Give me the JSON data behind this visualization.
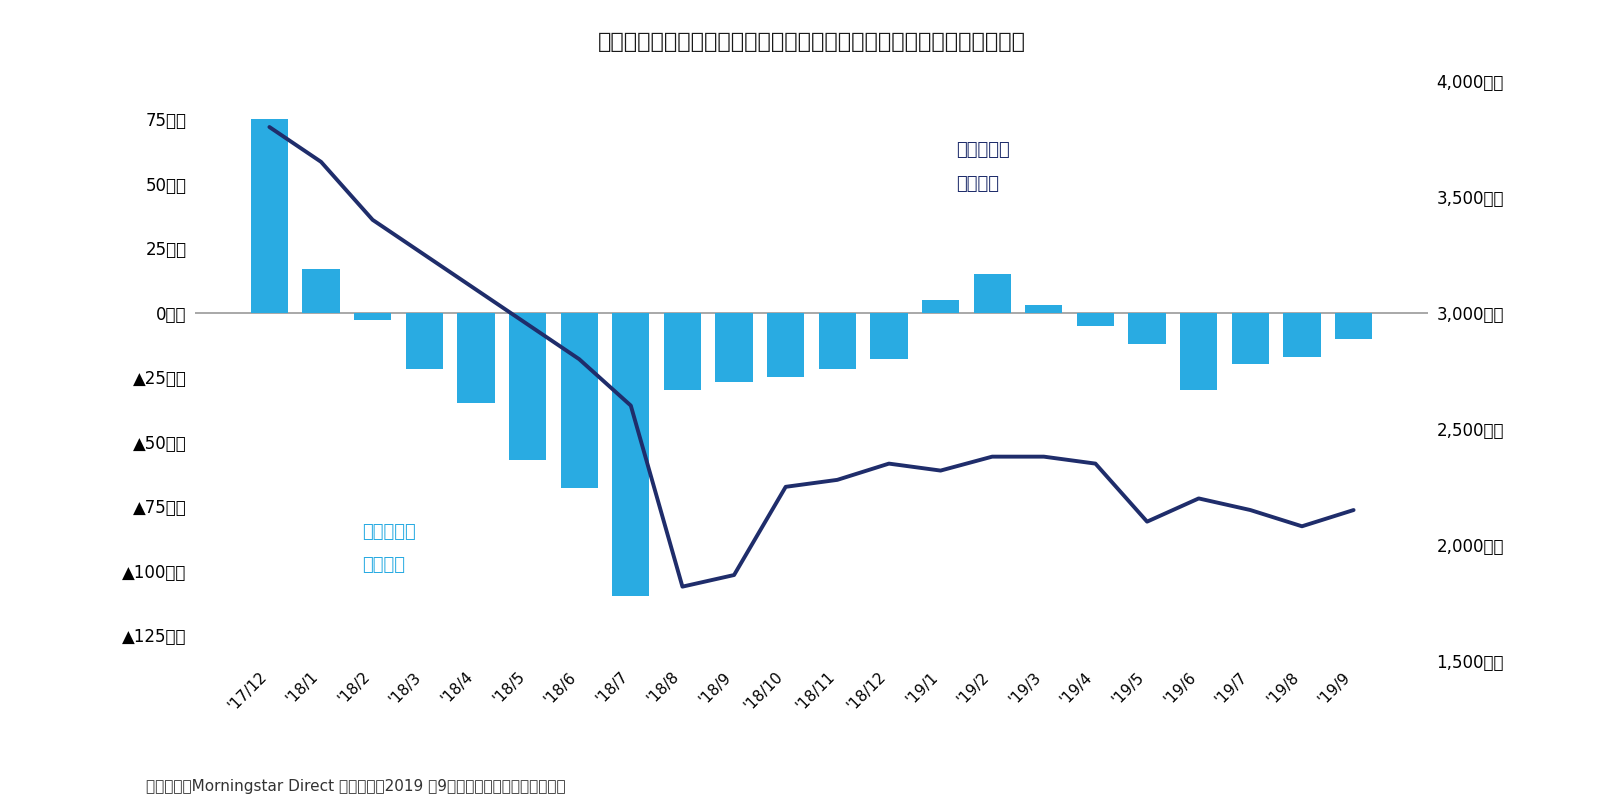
{
  "title": "》図表５》トルコ･リラ通貨選択型ファンドの資金流出入と級資産総額",
  "footnote": "（資料）　Morningstar Direct より作成　2019 年9月の資金流出入のみ推計値。",
  "categories": [
    "'17/12",
    "'18/1",
    "'18/2",
    "'18/3",
    "'18/4",
    "'18/5",
    "'18/6",
    "'18/7",
    "'18/8",
    "'18/9",
    "'18/10",
    "'18/11",
    "'18/12",
    "'19/1",
    "'19/2",
    "'19/3",
    "'19/4",
    "'19/5",
    "'19/6",
    "'19/7",
    "'19/8",
    "'19/9"
  ],
  "bar_values": [
    75,
    17,
    -3,
    -22,
    -35,
    -57,
    -68,
    -110,
    -30,
    -27,
    -25,
    -22,
    -18,
    5,
    15,
    3,
    -5,
    -12,
    -30,
    -20,
    -17,
    -10
  ],
  "line_values": [
    3800,
    3650,
    3400,
    3250,
    3100,
    2950,
    2800,
    2600,
    1820,
    1870,
    2250,
    2280,
    2350,
    2320,
    2380,
    2380,
    2350,
    2100,
    2200,
    2150,
    2080,
    2150
  ],
  "bar_color": "#29ABE2",
  "line_color": "#1F2D6B",
  "left_ylim": [
    -135,
    90
  ],
  "right_ylim": [
    1500,
    4000
  ],
  "left_yticks": [
    75,
    50,
    25,
    0,
    -25,
    -50,
    -75,
    -100,
    -125
  ],
  "left_yticklabels": [
    "75億円",
    "50億円",
    "25億円",
    "0億円",
    "▲25億円",
    "▲50億円",
    "▲75億円",
    "▲100億円",
    "▲125億円"
  ],
  "right_yticks": [
    1500,
    2000,
    2500,
    3000,
    3500,
    4000
  ],
  "right_yticklabels": [
    "1,500億円",
    "2,000億円",
    "2,500億円",
    "3,000億円",
    "3,500億円",
    "4,000億円"
  ],
  "bar_label_line1": "資金流出入",
  "bar_label_line2": "（左軸）",
  "line_label_line1": "級資産総額",
  "line_label_line2": "（右軸）",
  "background_color": "#ffffff",
  "zero_line_color": "#999999",
  "title_fontsize": 16,
  "tick_fontsize": 12,
  "annotation_fontsize": 13,
  "footnote_fontsize": 11
}
